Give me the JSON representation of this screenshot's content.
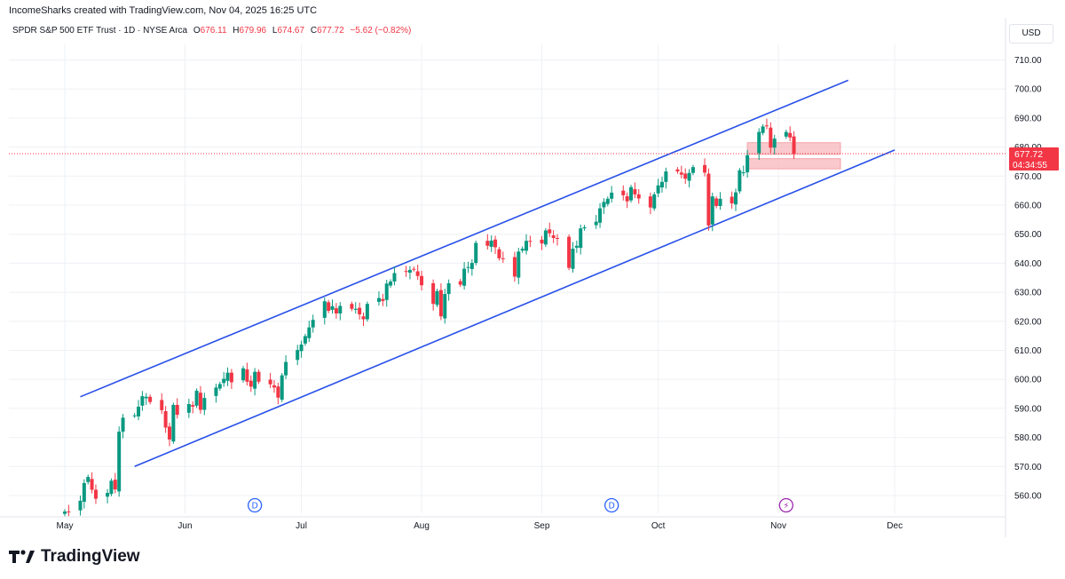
{
  "header": {
    "attribution": "IncomeSharks created with TradingView.com, Nov 04, 2025 16:25 UTC"
  },
  "legend": {
    "symbol": "SPDR S&P 500 ETF Trust · 1D · NYSE Arca",
    "open_label": "O",
    "open": "676.11",
    "high_label": "H",
    "high": "679.96",
    "low_label": "L",
    "low": "674.67",
    "close_label": "C",
    "close": "677.72",
    "change": "−5.62 (−0.82%)"
  },
  "toolbar": {
    "currency": "USD"
  },
  "price_tag": {
    "price": "677.72",
    "countdown": "04:34:55"
  },
  "event_markers": [
    "D",
    "D",
    "⚡"
  ],
  "branding": {
    "name": "TradingView"
  },
  "colors": {
    "up": "#089981",
    "down": "#F23645",
    "channel": "#2950E8",
    "zone": "#F7B7BC"
  },
  "chart_data": {
    "type": "candlestick",
    "title": "SPDR S&P 500 ETF Trust · 1D · NYSE Arca",
    "ylim": [
      551,
      718
    ],
    "y_ticks": [
      560,
      570,
      580,
      590,
      600,
      610,
      620,
      630,
      640,
      650,
      660,
      670,
      680,
      690,
      700,
      710
    ],
    "x_tick_labels": [
      "May",
      "Jun",
      "Jul",
      "Aug",
      "Sep",
      "Oct",
      "Nov",
      "Dec"
    ],
    "x_tick_dates": [
      "2025-05-01",
      "2025-06-01",
      "2025-07-01",
      "2025-08-01",
      "2025-09-01",
      "2025-10-01",
      "2025-11-01",
      "2025-12-01"
    ],
    "closes": [
      554.5,
      554.2,
      558.2,
      564.3,
      566.4,
      562.0,
      558.9,
      560.9,
      565.1,
      562.1,
      582.0,
      586.8,
      587.6,
      590.6,
      594.2,
      594.0,
      592.2,
      589.4,
      583.4,
      579.3,
      591.2,
      587.8,
      591.5,
      590.6,
      596.1,
      589.5,
      593.6,
      597.2,
      598.4,
      600.2,
      602.3,
      599.0,
      603.8,
      599.2,
      597.5,
      602.6,
      599.2,
      598.3,
      597.2,
      593.7,
      601.4,
      606.0,
      610.1,
      612.0,
      614.9,
      617.9,
      620.5,
      626.9,
      623.6,
      625.2,
      622.7,
      625.3,
      624.3,
      624.3,
      622.4,
      620.7,
      626.0,
      628.0,
      627.0,
      633.0,
      633.7,
      636.6,
      637.1,
      637.7,
      637.9,
      635.6,
      632.4,
      626.0,
      630.4,
      621.7,
      629.4,
      633.1,
      632.6,
      638.1,
      638.7,
      640.1,
      647.0,
      646.0,
      647.8,
      645.5,
      641.7,
      641.4,
      635.4,
      644.0,
      645.0,
      647.7,
      647.4,
      646.8,
      651.3,
      650.3,
      648.7,
      648.4,
      638.4,
      645.0,
      646.0,
      652.0,
      652.4,
      654.3,
      658.9,
      661.1,
      662.2,
      664.3,
      663.4,
      661.3,
      666.2,
      663.7,
      662.3,
      659.2,
      663.7,
      666.8,
      668.0,
      671.6,
      671.6,
      670.5,
      669.1,
      671.1,
      673.1,
      671.2,
      653.0,
      663.0,
      659.7,
      662.2,
      660.6,
      664.4,
      672.0,
      671.3,
      677.2,
      685.2,
      687.1,
      687.4,
      679.8,
      682.9,
      685.2,
      683.3,
      677.7
    ],
    "series": [
      {
        "name": "Upper channel",
        "x": [
          "2025-05-05",
          "2025-11-19"
        ],
        "y": [
          594,
          703
        ]
      },
      {
        "name": "Lower channel",
        "x": [
          "2025-05-19",
          "2025-12-01"
        ],
        "y": [
          570,
          679
        ]
      }
    ],
    "zones": [
      {
        "x": [
          "2025-10-24",
          "2025-11-17"
        ],
        "y": [
          677.5,
          681.5
        ]
      },
      {
        "x": [
          "2025-10-24",
          "2025-11-17"
        ],
        "y": [
          672.5,
          676.0
        ]
      }
    ],
    "last_price": 677.72,
    "current_price": "677.72",
    "countdown": "04:34:55"
  }
}
